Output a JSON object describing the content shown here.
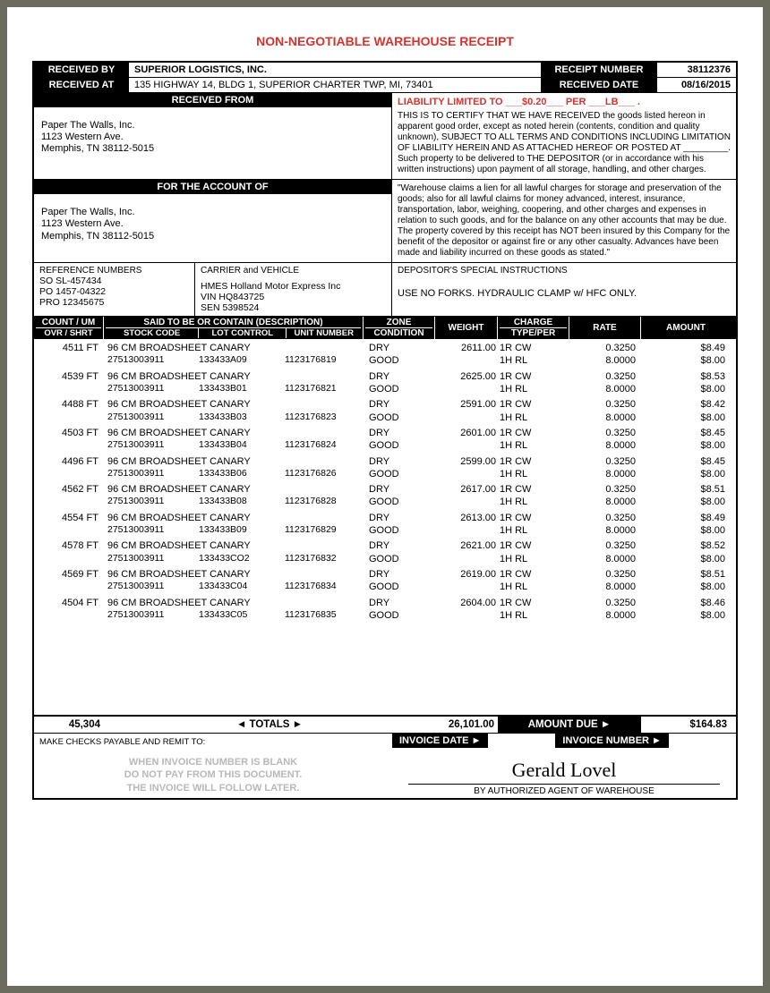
{
  "title": "NON-NEGOTIABLE WAREHOUSE RECEIPT",
  "header": {
    "received_by_lbl": "RECEIVED BY",
    "company": "SUPERIOR LOGISTICS, INC.",
    "receipt_num_lbl": "RECEIPT NUMBER",
    "receipt_num": "38112376",
    "received_at_lbl": "RECEIVED AT",
    "address": "135 HIGHWAY 14, BLDG 1, SUPERIOR CHARTER TWP, MI, 73401",
    "received_date_lbl": "RECEIVED DATE",
    "received_date": "08/16/2015"
  },
  "received_from": {
    "heading": "RECEIVED FROM",
    "name": "Paper The Walls, Inc.",
    "addr1": "1123 Western Ave.",
    "addr2": "Memphis, TN  38112-5015"
  },
  "liability": {
    "line": "LIABILITY LIMITED TO ___$0.20___ PER ___LB___ .",
    "text": "THIS IS TO CERTIFY THAT WE HAVE RECEIVED the goods listed hereon in apparent good order, except as noted herein (contents, condition and quality unknown), SUBJECT TO ALL TERMS AND CONDITIONS INCLUDING LIMITATION OF LIABILITY HEREIN AND AS ATTACHED HEREOF OR POSTED AT _________. Such property to be delivered to THE DEPOSITOR (or in accordance with his written instructions) upon payment of all storage, handling, and other charges."
  },
  "account": {
    "heading": "FOR THE ACCOUNT OF",
    "name": "Paper The Walls, Inc.",
    "addr1": "1123 Western Ave.",
    "addr2": "Memphis, TN  38112-5015",
    "lien": "\"Warehouse claims a lien for all lawful charges for storage and preservation of the goods; also for all lawful claims for money advanced, interest, insurance, transportation, labor, weighing, coopering, and other charges and expenses in relation to such goods, and for the balance on any other accounts that may be due. The property covered by this receipt has NOT been insured by this Company for the benefit of the depositor or against fire or any other casualty. Advances have been made and liability incurred on these goods as stated.\""
  },
  "refs": {
    "ref_lbl": "REFERENCE NUMBERS",
    "ref1": "SO SL-457434",
    "ref2": "PO 1457-04322",
    "ref3": "PRO 12345675",
    "carrier_lbl": "CARRIER and VEHICLE",
    "carrier": "HMES  Holland Motor Express Inc",
    "vin": "VIN  HQ843725",
    "sen": "SEN  5398524",
    "dep_lbl": "DEPOSITOR'S SPECIAL INSTRUCTIONS",
    "dep": "USE NO FORKS. HYDRAULIC CLAMP w/ HFC ONLY."
  },
  "cols": {
    "count": "COUNT / UM",
    "desc": "SAID TO BE OR CONTAIN (DESCRIPTION)",
    "zone": "ZONE",
    "weight": "WEIGHT",
    "charge": "CHARGE",
    "rate": "RATE",
    "amount": "AMOUNT",
    "ovr": "OVR / SHRT",
    "stock": "STOCK CODE",
    "lot": "LOT CONTROL",
    "unit": "UNIT NUMBER",
    "cond": "CONDITION",
    "type": "TYPE/PER"
  },
  "items": [
    {
      "count": "4511 FT",
      "desc": "96 CM BROADSHEET CANARY",
      "stock": "27513003911",
      "lot": "133433A09",
      "unit": "1123176819",
      "zone": "DRY",
      "cond": "GOOD",
      "weight": "2611.00",
      "c1": "1R  CW",
      "c2": "1H  RL",
      "r1": "0.3250",
      "r2": "8.0000",
      "a1": "$8.49",
      "a2": "$8.00"
    },
    {
      "count": "4539 FT",
      "desc": "96 CM BROADSHEET CANARY",
      "stock": "27513003911",
      "lot": "133433B01",
      "unit": "1123176821",
      "zone": "DRY",
      "cond": "GOOD",
      "weight": "2625.00",
      "c1": "1R  CW",
      "c2": "1H  RL",
      "r1": "0.3250",
      "r2": "8.0000",
      "a1": "$8.53",
      "a2": "$8.00"
    },
    {
      "count": "4488 FT",
      "desc": "96 CM BROADSHEET CANARY",
      "stock": "27513003911",
      "lot": "133433B03",
      "unit": "1123176823",
      "zone": "DRY",
      "cond": "GOOD",
      "weight": "2591.00",
      "c1": "1R  CW",
      "c2": "1H  RL",
      "r1": "0.3250",
      "r2": "8.0000",
      "a1": "$8.42",
      "a2": "$8.00"
    },
    {
      "count": "4503 FT",
      "desc": "96 CM BROADSHEET CANARY",
      "stock": "27513003911",
      "lot": "133433B04",
      "unit": "1123176824",
      "zone": "DRY",
      "cond": "GOOD",
      "weight": "2601.00",
      "c1": "1R  CW",
      "c2": "1H  RL",
      "r1": "0.3250",
      "r2": "8.0000",
      "a1": "$8.45",
      "a2": "$8.00"
    },
    {
      "count": "4496 FT",
      "desc": "96 CM BROADSHEET CANARY",
      "stock": "27513003911",
      "lot": "133433B06",
      "unit": "1123176826",
      "zone": "DRY",
      "cond": "GOOD",
      "weight": "2599.00",
      "c1": "1R  CW",
      "c2": "1H  RL",
      "r1": "0.3250",
      "r2": "8.0000",
      "a1": "$8.45",
      "a2": "$8.00"
    },
    {
      "count": "4562 FT",
      "desc": "96 CM BROADSHEET CANARY",
      "stock": "27513003911",
      "lot": "133433B08",
      "unit": "1123176828",
      "zone": "DRY",
      "cond": "GOOD",
      "weight": "2617.00",
      "c1": "1R  CW",
      "c2": "1H  RL",
      "r1": "0.3250",
      "r2": "8.0000",
      "a1": "$8.51",
      "a2": "$8.00"
    },
    {
      "count": "4554 FT",
      "desc": "96 CM BROADSHEET CANARY",
      "stock": "27513003911",
      "lot": "133433B09",
      "unit": "1123176829",
      "zone": "DRY",
      "cond": "GOOD",
      "weight": "2613.00",
      "c1": "1R  CW",
      "c2": "1H  RL",
      "r1": "0.3250",
      "r2": "8.0000",
      "a1": "$8.49",
      "a2": "$8.00"
    },
    {
      "count": "4578 FT",
      "desc": "96 CM BROADSHEET CANARY",
      "stock": "27513003911",
      "lot": "133433CO2",
      "unit": "1123176832",
      "zone": "DRY",
      "cond": "GOOD",
      "weight": "2621.00",
      "c1": "1R  CW",
      "c2": "1H  RL",
      "r1": "0.3250",
      "r2": "8.0000",
      "a1": "$8.52",
      "a2": "$8.00"
    },
    {
      "count": "4569 FT",
      "desc": "96 CM BROADSHEET CANARY",
      "stock": "27513003911",
      "lot": "133433C04",
      "unit": "1123176834",
      "zone": "DRY",
      "cond": "GOOD",
      "weight": "2619.00",
      "c1": "1R  CW",
      "c2": "1H  RL",
      "r1": "0.3250",
      "r2": "8.0000",
      "a1": "$8.51",
      "a2": "$8.00"
    },
    {
      "count": "4504 FT",
      "desc": "96 CM BROADSHEET CANARY",
      "stock": "27513003911",
      "lot": "133433C05",
      "unit": "1123176835",
      "zone": "DRY",
      "cond": "GOOD",
      "weight": "2604.00",
      "c1": "1R  CW",
      "c2": "1H  RL",
      "r1": "0.3250",
      "r2": "8.0000",
      "a1": "$8.46",
      "a2": "$8.00"
    }
  ],
  "totals": {
    "count": "45,304",
    "label": "◄ TOTALS ►",
    "weight": "26,101.00",
    "due_lbl": "AMOUNT DUE ►",
    "amount": "$164.83"
  },
  "footer": {
    "remit": "MAKE CHECKS PAYABLE AND REMIT TO:",
    "disclaimer1": "WHEN INVOICE NUMBER IS BLANK",
    "disclaimer2": "DO NOT PAY FROM THIS DOCUMENT.",
    "disclaimer3": "THE INVOICE WILL FOLLOW LATER.",
    "inv_date_lbl": "INVOICE DATE ►",
    "inv_num_lbl": "INVOICE NUMBER ►",
    "signature": "Gerald Lovel",
    "sig_lbl": "BY AUTHORIZED AGENT OF WAREHOUSE"
  }
}
